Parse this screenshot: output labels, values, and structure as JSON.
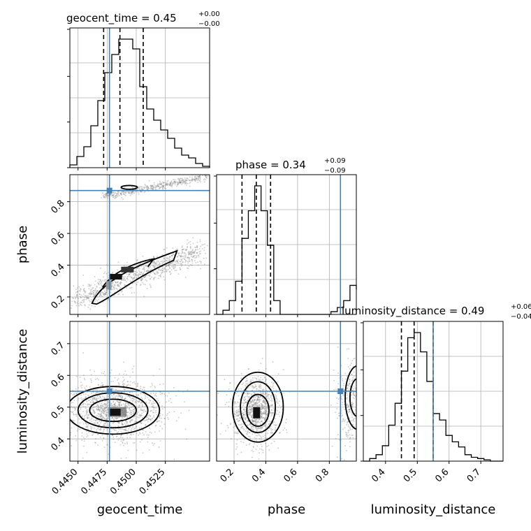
{
  "chart_data": {
    "type": "corner",
    "colors": {
      "truth": "#4682b4",
      "hist": "#000000",
      "grid": "#b0b0b0",
      "scatter": "#7f7f7f"
    },
    "grid": true,
    "parameters": [
      {
        "name": "geocent_time",
        "xlabel": "geocent_time",
        "range": [
          0.4443,
          0.4563
        ],
        "ticks": [
          0.445,
          0.4475,
          0.45,
          0.4525
        ],
        "tick_labels": [
          "0.4450",
          "0.4475",
          "0.4500",
          "0.4525"
        ],
        "truth": 0.4477,
        "quantiles": [
          0.4472,
          0.4486,
          0.4506
        ],
        "title": {
          "main": "geocent_time = 0.45",
          "sup": "+0.00",
          "sub": "−0.00"
        },
        "hist_edges": [
          0.4443,
          0.4449,
          0.4455,
          0.4461,
          0.4467,
          0.4473,
          0.4479,
          0.4485,
          0.4491,
          0.4497,
          0.4503,
          0.4509,
          0.4515,
          0.4521,
          0.4527,
          0.4533,
          0.4539,
          0.4545,
          0.4551,
          0.4557,
          0.4563
        ],
        "hist_counts": [
          0.02,
          0.08,
          0.15,
          0.3,
          0.48,
          0.68,
          0.81,
          0.92,
          0.92,
          0.85,
          0.58,
          0.42,
          0.34,
          0.27,
          0.21,
          0.14,
          0.09,
          0.07,
          0.03,
          0.01
        ]
      },
      {
        "name": "phase",
        "ylabel": "phase",
        "xlabel": "phase",
        "range": [
          0.09,
          0.97
        ],
        "ticks": [
          0.2,
          0.4,
          0.6,
          0.8
        ],
        "tick_labels": [
          "0.2",
          "0.4",
          "0.6",
          "0.8"
        ],
        "truth": 0.87,
        "quantiles": [
          0.25,
          0.34,
          0.43
        ],
        "title": {
          "main": "phase = 0.34",
          "sup": "+0.09",
          "sub": "−0.09"
        },
        "hist_edges": [
          0.09,
          0.13,
          0.17,
          0.21,
          0.25,
          0.29,
          0.33,
          0.37,
          0.41,
          0.45,
          0.49,
          0.53,
          0.57,
          0.61,
          0.65,
          0.69,
          0.73,
          0.77,
          0.81,
          0.85,
          0.89,
          0.93,
          0.97
        ],
        "hist_counts": [
          0.0,
          0.03,
          0.1,
          0.24,
          0.55,
          0.75,
          0.93,
          0.75,
          0.5,
          0.1,
          0.0,
          0.0,
          0.0,
          0.0,
          0.0,
          0.0,
          0.0,
          0.0,
          0.02,
          0.05,
          0.1,
          0.21,
          0.18
        ]
      },
      {
        "name": "luminosity_distance",
        "ylabel": "luminosity_distance",
        "xlabel": "luminosity_distance",
        "range": [
          0.33,
          0.77
        ],
        "ticks": [
          0.4,
          0.5,
          0.6,
          0.7
        ],
        "tick_labels": [
          "0.4",
          "0.5",
          "0.6",
          "0.7"
        ],
        "truth": 0.55,
        "quantiles": [
          0.45,
          0.49,
          0.55
        ],
        "title": {
          "main": "luminosity_distance = 0.49",
          "sup": "+0.06",
          "sub": "−0.04"
        },
        "hist_edges": [
          0.33,
          0.35,
          0.37,
          0.39,
          0.41,
          0.43,
          0.45,
          0.47,
          0.49,
          0.51,
          0.53,
          0.55,
          0.57,
          0.59,
          0.61,
          0.63,
          0.65,
          0.67,
          0.69,
          0.71,
          0.73,
          0.75,
          0.77
        ],
        "hist_counts": [
          0.0,
          0.02,
          0.05,
          0.12,
          0.28,
          0.45,
          0.7,
          0.96,
          1.0,
          0.85,
          0.62,
          0.37,
          0.32,
          0.2,
          0.15,
          0.11,
          0.05,
          0.03,
          0.02,
          0.01,
          0.0,
          0.0
        ]
      }
    ]
  }
}
